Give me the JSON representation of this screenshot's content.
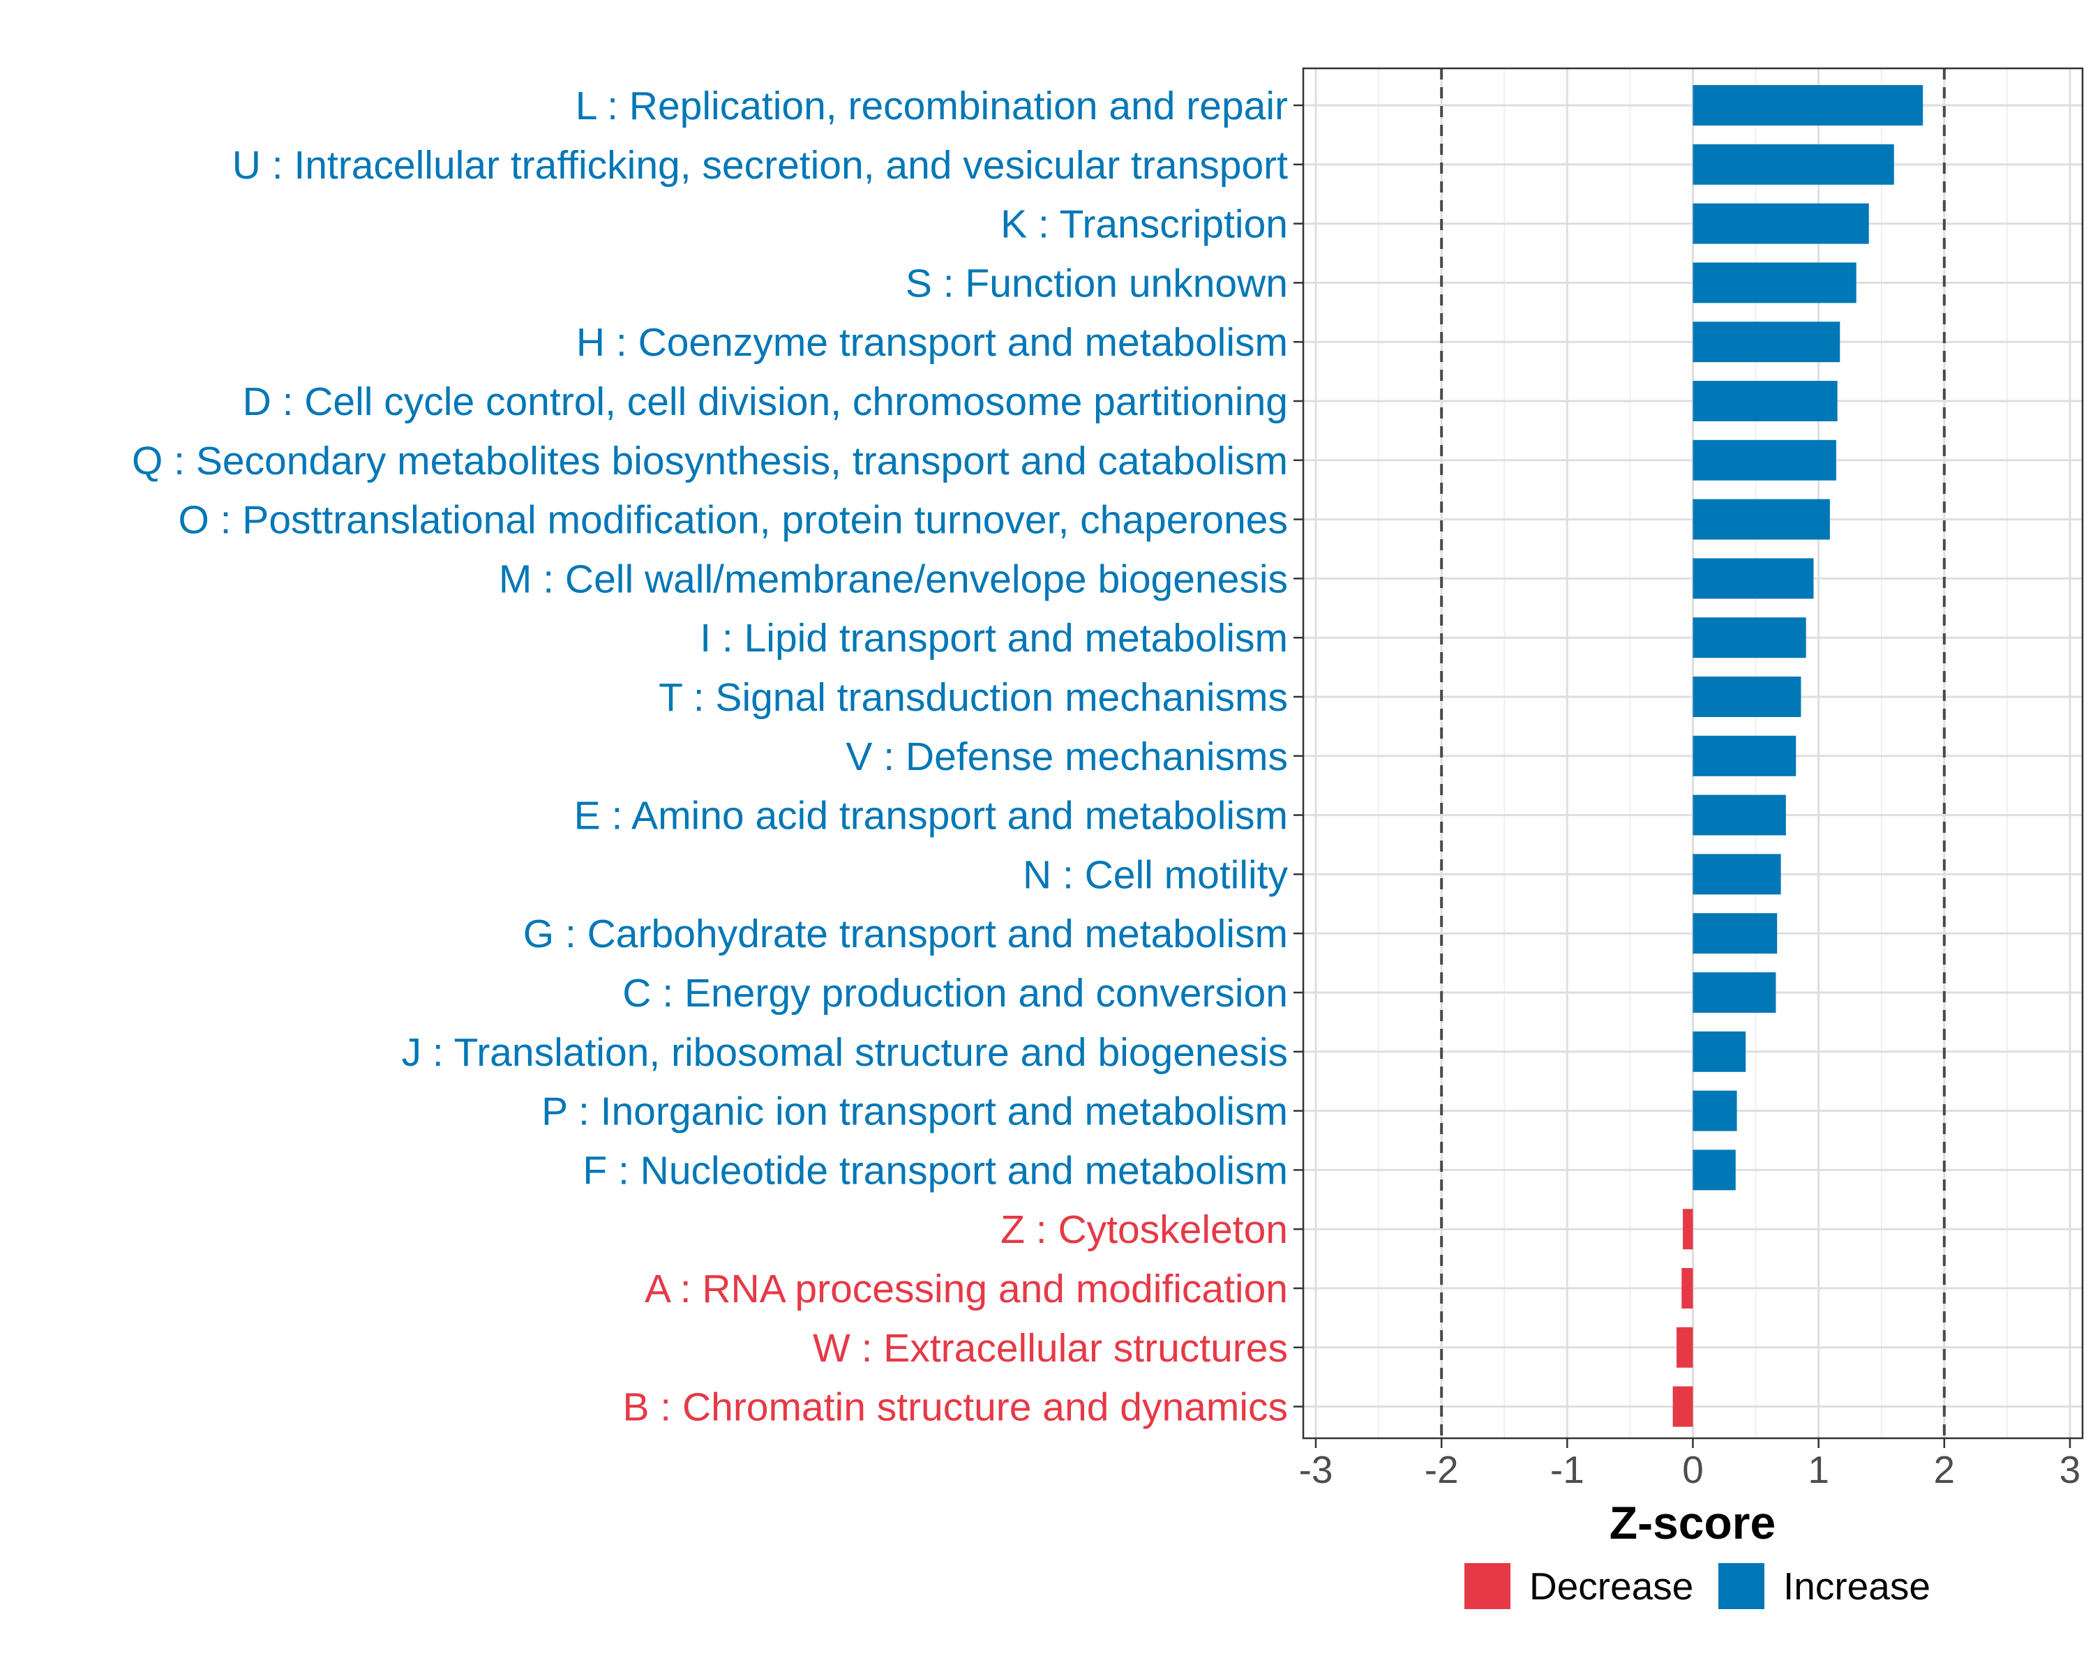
{
  "chart_data": {
    "type": "bar",
    "orientation": "horizontal",
    "xlabel": "Z-score",
    "xlim": [
      -3.1,
      3.1
    ],
    "xticks": [
      -3,
      -2,
      -1,
      0,
      1,
      2,
      3
    ],
    "xtick_labels": [
      "-3",
      "-2",
      "-1",
      "0",
      "1",
      "2",
      "3"
    ],
    "reference_lines": [
      -2,
      2
    ],
    "grid": true,
    "colors": {
      "Decrease": "#e63946",
      "Increase": "#0077b6"
    },
    "categories": [
      "L : Replication, recombination and repair",
      "U : Intracellular trafficking, secretion, and vesicular transport",
      "K : Transcription",
      "S : Function unknown",
      "H : Coenzyme transport and metabolism",
      "D : Cell cycle control, cell division, chromosome partitioning",
      "Q : Secondary metabolites biosynthesis, transport and catabolism",
      "O : Posttranslational modification, protein turnover, chaperones",
      "M : Cell wall/membrane/envelope biogenesis",
      "I : Lipid transport and metabolism",
      "T : Signal transduction mechanisms",
      "V : Defense mechanisms",
      "E : Amino acid transport and metabolism",
      "N : Cell motility",
      "G : Carbohydrate transport and metabolism",
      "C : Energy production and conversion",
      "J : Translation, ribosomal structure and biogenesis",
      "P : Inorganic ion transport and metabolism",
      "F : Nucleotide transport and metabolism",
      "Z : Cytoskeleton",
      "A : RNA processing and modification",
      "W : Extracellular structures",
      "B : Chromatin structure and dynamics"
    ],
    "values": [
      1.83,
      1.6,
      1.4,
      1.3,
      1.17,
      1.15,
      1.14,
      1.09,
      0.96,
      0.9,
      0.86,
      0.82,
      0.74,
      0.7,
      0.67,
      0.66,
      0.42,
      0.35,
      0.34,
      -0.08,
      -0.09,
      -0.13,
      -0.16
    ],
    "groups": [
      "Increase",
      "Increase",
      "Increase",
      "Increase",
      "Increase",
      "Increase",
      "Increase",
      "Increase",
      "Increase",
      "Increase",
      "Increase",
      "Increase",
      "Increase",
      "Increase",
      "Increase",
      "Increase",
      "Increase",
      "Increase",
      "Increase",
      "Decrease",
      "Decrease",
      "Decrease",
      "Decrease"
    ],
    "legend": {
      "position": "bottom",
      "entries": [
        {
          "label": "Decrease",
          "color": "#e63946"
        },
        {
          "label": "Increase",
          "color": "#0077b6"
        }
      ]
    }
  }
}
